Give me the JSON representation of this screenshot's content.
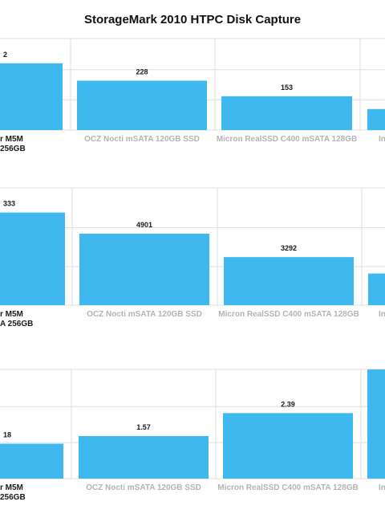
{
  "title": "StorageMark 2010 HTPC Disk Capture",
  "colors": {
    "bar": "#3fb8ef",
    "grid": "#dedede",
    "label_primary": "#1a1a1a",
    "label_secondary": "#b3b3b3"
  },
  "chart_data": [
    {
      "type": "bar",
      "categories": [
        {
          "lines": [
            "r M5M",
            "256GB"
          ],
          "highlight": true
        },
        {
          "lines": [
            "OCZ Nocti mSATA 120GB SSD"
          ],
          "highlight": false
        },
        {
          "lines": [
            "Micron RealSSD C400 mSATA 128GB"
          ],
          "highlight": false
        },
        {
          "lines": [
            "In"
          ],
          "highlight": false
        }
      ],
      "values": [
        null,
        228,
        153,
        null
      ],
      "value_labels": [
        "2",
        "228",
        "153",
        ""
      ],
      "bar_heights": [
        0.73,
        0.54,
        0.37,
        0.23
      ]
    },
    {
      "type": "bar",
      "categories": [
        {
          "lines": [
            "r M5M",
            "A 256GB"
          ],
          "highlight": true
        },
        {
          "lines": [
            "OCZ Nocti mSATA 120GB SSD"
          ],
          "highlight": false
        },
        {
          "lines": [
            "Micron RealSSD C400 mSATA 128GB"
          ],
          "highlight": false
        },
        {
          "lines": [
            "In"
          ],
          "highlight": false
        }
      ],
      "values": [
        null,
        4901,
        3292,
        null
      ],
      "value_labels": [
        "333",
        "4901",
        "3292",
        ""
      ],
      "bar_heights": [
        0.79,
        0.61,
        0.41,
        0.27
      ]
    },
    {
      "type": "bar",
      "categories": [
        {
          "lines": [
            "r M5M",
            "256GB"
          ],
          "highlight": true
        },
        {
          "lines": [
            "OCZ Nocti mSATA 120GB SSD"
          ],
          "highlight": false
        },
        {
          "lines": [
            "Micron RealSSD C400 mSATA 128GB"
          ],
          "highlight": false
        },
        {
          "lines": [
            "In"
          ],
          "highlight": false
        }
      ],
      "values": [
        null,
        1.57,
        2.39,
        null
      ],
      "value_labels": [
        "18",
        "1.57",
        "2.39",
        ""
      ],
      "bar_heights": [
        0.32,
        0.39,
        0.6,
        1.0
      ]
    }
  ]
}
